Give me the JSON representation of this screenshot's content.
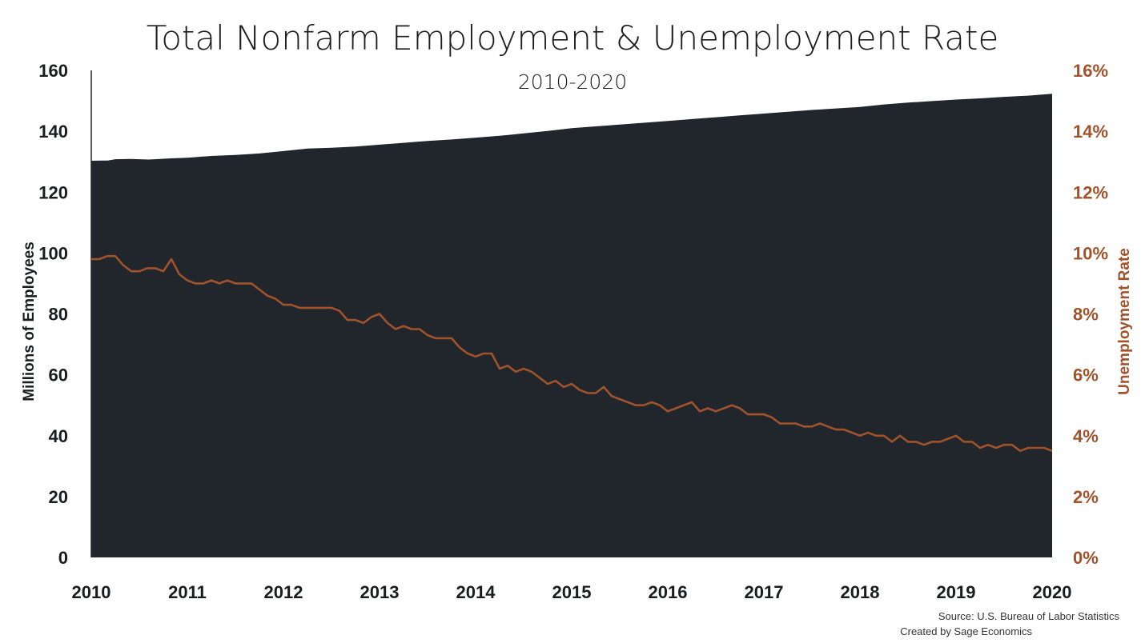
{
  "chart_data": {
    "type": "area",
    "title": "Total Nonfarm Employment & Unemployment Rate",
    "subtitle": "2010-2020",
    "ylabel_left": "Millions of Employees",
    "ylabel_right": "Unemployment Rate",
    "x_ticks": [
      "2010",
      "2011",
      "2012",
      "2013",
      "2014",
      "2015",
      "2016",
      "2017",
      "2018",
      "2019",
      "2020"
    ],
    "y_left_ticks": [
      "0",
      "20",
      "40",
      "60",
      "80",
      "100",
      "120",
      "140",
      "160"
    ],
    "y_right_ticks": [
      "0%",
      "2%",
      "4%",
      "6%",
      "8%",
      "10%",
      "12%",
      "14%",
      "16%"
    ],
    "ylim_left": [
      0,
      160
    ],
    "ylim_right": [
      0,
      16
    ],
    "xlim": [
      2010,
      2020
    ],
    "grid": false,
    "legend": "none",
    "series": [
      {
        "kind": "area",
        "axis": "left",
        "color": "#21252c",
        "x": [
          2010.0,
          2010.17,
          2010.25,
          2010.4,
          2010.6,
          2010.83,
          2011.0,
          2011.25,
          2011.5,
          2011.75,
          2012.0,
          2012.25,
          2012.5,
          2012.75,
          2013.0,
          2013.25,
          2013.5,
          2013.75,
          2014.0,
          2014.25,
          2014.5,
          2014.75,
          2015.0,
          2015.25,
          2015.5,
          2015.75,
          2016.0,
          2016.25,
          2016.5,
          2016.75,
          2017.0,
          2017.25,
          2017.5,
          2017.75,
          2018.0,
          2018.25,
          2018.5,
          2018.75,
          2019.0,
          2019.25,
          2019.5,
          2019.75,
          2020.0
        ],
        "values": [
          130.3,
          130.4,
          130.8,
          130.9,
          130.7,
          131.1,
          131.3,
          131.9,
          132.2,
          132.7,
          133.5,
          134.3,
          134.6,
          135.0,
          135.6,
          136.2,
          136.8,
          137.3,
          137.9,
          138.5,
          139.3,
          140.1,
          141.0,
          141.6,
          142.2,
          142.8,
          143.4,
          144.0,
          144.6,
          145.2,
          145.8,
          146.4,
          147.0,
          147.5,
          148.0,
          148.8,
          149.4,
          149.9,
          150.4,
          150.8,
          151.3,
          151.7,
          152.3
        ]
      },
      {
        "kind": "line",
        "axis": "right",
        "color": "#a0532a",
        "x": [
          2010.0,
          2010.083,
          2010.167,
          2010.25,
          2010.333,
          2010.417,
          2010.5,
          2010.583,
          2010.667,
          2010.75,
          2010.833,
          2010.917,
          2011.0,
          2011.083,
          2011.167,
          2011.25,
          2011.333,
          2011.417,
          2011.5,
          2011.583,
          2011.667,
          2011.75,
          2011.833,
          2011.917,
          2012.0,
          2012.083,
          2012.167,
          2012.25,
          2012.333,
          2012.417,
          2012.5,
          2012.583,
          2012.667,
          2012.75,
          2012.833,
          2012.917,
          2013.0,
          2013.083,
          2013.167,
          2013.25,
          2013.333,
          2013.417,
          2013.5,
          2013.583,
          2013.667,
          2013.75,
          2013.833,
          2013.917,
          2014.0,
          2014.083,
          2014.167,
          2014.25,
          2014.333,
          2014.417,
          2014.5,
          2014.583,
          2014.667,
          2014.75,
          2014.833,
          2014.917,
          2015.0,
          2015.083,
          2015.167,
          2015.25,
          2015.333,
          2015.417,
          2015.5,
          2015.583,
          2015.667,
          2015.75,
          2015.833,
          2015.917,
          2016.0,
          2016.083,
          2016.167,
          2016.25,
          2016.333,
          2016.417,
          2016.5,
          2016.583,
          2016.667,
          2016.75,
          2016.833,
          2016.917,
          2017.0,
          2017.083,
          2017.167,
          2017.25,
          2017.333,
          2017.417,
          2017.5,
          2017.583,
          2017.667,
          2017.75,
          2017.833,
          2017.917,
          2018.0,
          2018.083,
          2018.167,
          2018.25,
          2018.333,
          2018.417,
          2018.5,
          2018.583,
          2018.667,
          2018.75,
          2018.833,
          2018.917,
          2019.0,
          2019.083,
          2019.167,
          2019.25,
          2019.333,
          2019.417,
          2019.5,
          2019.583,
          2019.667,
          2019.75,
          2019.833,
          2019.917,
          2020.0
        ],
        "values": [
          9.8,
          9.8,
          9.9,
          9.9,
          9.6,
          9.4,
          9.4,
          9.5,
          9.5,
          9.4,
          9.8,
          9.3,
          9.1,
          9.0,
          9.0,
          9.1,
          9.0,
          9.1,
          9.0,
          9.0,
          9.0,
          8.8,
          8.6,
          8.5,
          8.3,
          8.3,
          8.2,
          8.2,
          8.2,
          8.2,
          8.2,
          8.1,
          7.8,
          7.8,
          7.7,
          7.9,
          8.0,
          7.7,
          7.5,
          7.6,
          7.5,
          7.5,
          7.3,
          7.2,
          7.2,
          7.2,
          6.9,
          6.7,
          6.6,
          6.7,
          6.7,
          6.2,
          6.3,
          6.1,
          6.2,
          6.1,
          5.9,
          5.7,
          5.8,
          5.6,
          5.7,
          5.5,
          5.4,
          5.4,
          5.6,
          5.3,
          5.2,
          5.1,
          5.0,
          5.0,
          5.1,
          5.0,
          4.8,
          4.9,
          5.0,
          5.1,
          4.8,
          4.9,
          4.8,
          4.9,
          5.0,
          4.9,
          4.7,
          4.7,
          4.7,
          4.6,
          4.4,
          4.4,
          4.4,
          4.3,
          4.3,
          4.4,
          4.3,
          4.2,
          4.2,
          4.1,
          4.0,
          4.1,
          4.0,
          4.0,
          3.8,
          4.0,
          3.8,
          3.8,
          3.7,
          3.8,
          3.8,
          3.9,
          4.0,
          3.8,
          3.8,
          3.6,
          3.7,
          3.6,
          3.7,
          3.7,
          3.5,
          3.6,
          3.6,
          3.6,
          3.5
        ]
      }
    ]
  },
  "source_line1": "Source: U.S. Bureau of Labor Statistics",
  "source_line2": "Created by Sage Economics",
  "colors": {
    "area": "#21252c",
    "line": "#a0532a",
    "left_axis_text": "#1a1c20",
    "right_axis_text": "#a0532a"
  }
}
